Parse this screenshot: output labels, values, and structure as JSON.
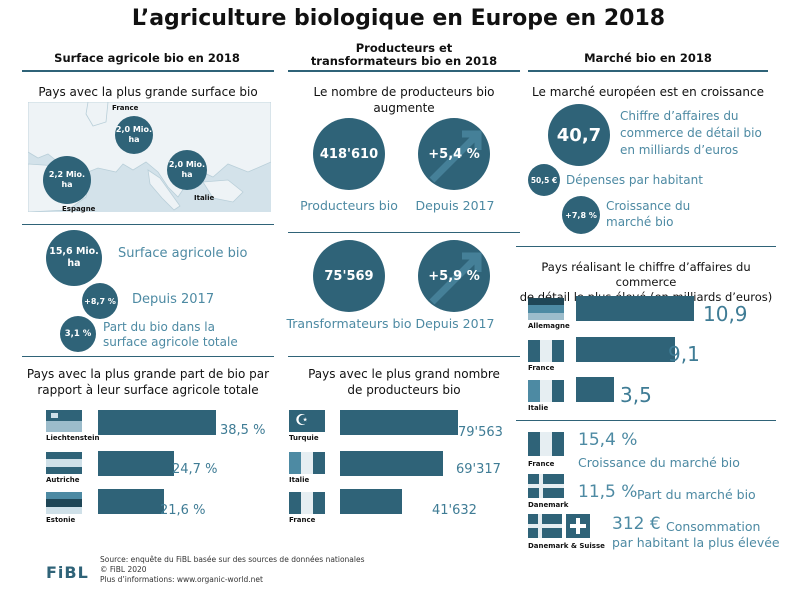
{
  "title": "L’agriculture biologique en Europe en 2018",
  "col1": {
    "header": "Surface agricole bio en 2018",
    "subtitle": "Pays avec la plus grande surface bio",
    "map_labels": {
      "france": "France",
      "france_value": "2,0 Mio. ha",
      "spain": "Espagne",
      "spain_value": "2,2 Mio. ha",
      "italy": "Italie",
      "italy_value": "2,0 Mio. ha"
    },
    "surface_value": "15,6 Mio. ha",
    "surface_label": "Surface agricole bio",
    "growth_value": "+8,7 %",
    "growth_label": "Depuis 2017",
    "share_value": "3,1 %",
    "share_label_1": "Part du bio dans la",
    "share_label_2": "surface agricole totale",
    "share_title_1": "Pays avec la plus grande part de bio par",
    "share_title_2": "rapport à leur surface agricole totale",
    "countries": [
      {
        "name": "Liechtenstein",
        "value": "38,5 %",
        "num": 38.5
      },
      {
        "name": "Autriche",
        "value": "24,7 %",
        "num": 24.7
      },
      {
        "name": "Estonie",
        "value": "21,6 %",
        "num": 21.6
      }
    ]
  },
  "col2": {
    "header_1": "Producteurs et",
    "header_2": "transformateurs bio en 2018",
    "subtitle": "Le nombre de producteurs bio augmente",
    "producers_value": "418'610",
    "producers_label": "Producteurs bio",
    "producers_growth": "+5,4 %",
    "producers_growth_label": "Depuis 2017",
    "processors_value": "75'569",
    "processors_label": "Transformateurs bio",
    "processors_growth": "+5,9 %",
    "processors_growth_label": "Depuis 2017",
    "top_title_1": "Pays avec le plus grand nombre",
    "top_title_2": "de producteurs bio",
    "countries": [
      {
        "name": "Turquie",
        "value": "79'563",
        "num": 79563
      },
      {
        "name": "Italie",
        "value": "69'317",
        "num": 69317
      },
      {
        "name": "France",
        "value": "41'632",
        "num": 41632
      }
    ]
  },
  "col3": {
    "header": "Marché bio en 2018",
    "subtitle": "Le marché européen est en croissance",
    "retail_value": "40,7",
    "retail_label_1": "Chiffre d’affaires du",
    "retail_label_2": "commerce de détail bio",
    "retail_label_3": "en milliards d’euros",
    "spend_value": "50,5 €",
    "spend_label": "Dépenses par habitant",
    "growth_value": "+7,8 %",
    "growth_label_1": "Croissance du",
    "growth_label_2": "marché bio",
    "top_title_1": "Pays réalisant le chiffre d’affaires du commerce",
    "top_title_2": "de détail le plus élevé (en milliards d’euros)",
    "countries": [
      {
        "name": "Allemagne",
        "value": "10,9",
        "num": 10.9
      },
      {
        "name": "France",
        "value": "9,1",
        "num": 9.1
      },
      {
        "name": "Italie",
        "value": "3,5",
        "num": 3.5
      }
    ],
    "fr_value": "15,4 %",
    "fr_label": "Croissance du marché bio",
    "fr_country": "France",
    "dk_value": "11,5 %",
    "dk_label": "Part du marché bio",
    "dk_country": "Danemark",
    "dkch_value": "312 €",
    "dkch_label_1": "Consommation",
    "dkch_label_2": "par habitant la plus élevée",
    "dkch_country": "Danemark & Suisse"
  },
  "footer": {
    "source_1": "Source: enquête du FiBL basée sur des sources de données nationales",
    "source_2": "© FiBL 2020",
    "source_3": "Plus d’informations: www.organic-world.net",
    "logo": "FiBL"
  },
  "colors": {
    "primary": "#2f6378",
    "accent": "#4d8aa3",
    "map": "#d3e2ea"
  }
}
